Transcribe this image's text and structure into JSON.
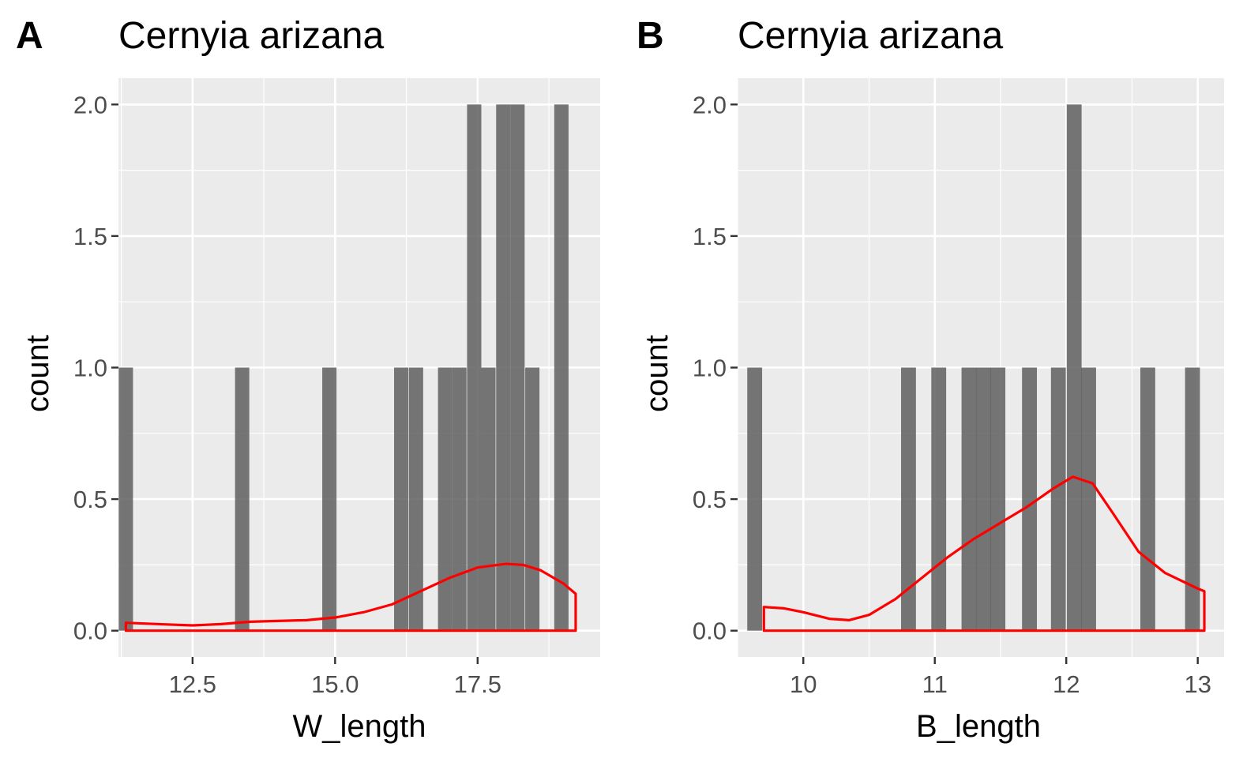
{
  "panels": [
    {
      "tag": "A",
      "title": "Cernyia arizana",
      "xlabel": "W_length",
      "ylabel": "count"
    },
    {
      "tag": "B",
      "title": "Cernyia arizana",
      "xlabel": "B_length",
      "ylabel": "count"
    }
  ],
  "chart_data": [
    {
      "type": "bar",
      "subtype": "histogram with density overlay",
      "title": "Cernyia arizana",
      "xlabel": "W_length",
      "ylabel": "count",
      "xlim": [
        11.2,
        19.65
      ],
      "ylim": [
        -0.1,
        2.1
      ],
      "x_ticks": [
        "12.5",
        "15.0",
        "17.5"
      ],
      "y_ticks": [
        "0.0",
        "0.5",
        "1.0",
        "1.5",
        "2.0"
      ],
      "bin_width": 0.25,
      "bins": [
        {
          "x": 11.33,
          "count": 1
        },
        {
          "x": 13.37,
          "count": 1
        },
        {
          "x": 14.9,
          "count": 1
        },
        {
          "x": 16.16,
          "count": 1
        },
        {
          "x": 16.42,
          "count": 1
        },
        {
          "x": 16.93,
          "count": 1
        },
        {
          "x": 17.18,
          "count": 1
        },
        {
          "x": 17.44,
          "count": 2
        },
        {
          "x": 17.69,
          "count": 1
        },
        {
          "x": 17.95,
          "count": 2
        },
        {
          "x": 18.2,
          "count": 2
        },
        {
          "x": 18.46,
          "count": 1
        },
        {
          "x": 18.97,
          "count": 2
        }
      ],
      "density_line": {
        "color": "#ff0000",
        "points": [
          [
            11.33,
            0.03
          ],
          [
            12.0,
            0.024
          ],
          [
            12.5,
            0.02
          ],
          [
            13.0,
            0.025
          ],
          [
            13.5,
            0.034
          ],
          [
            14.0,
            0.037
          ],
          [
            14.5,
            0.04
          ],
          [
            15.0,
            0.05
          ],
          [
            15.5,
            0.07
          ],
          [
            16.0,
            0.1
          ],
          [
            16.5,
            0.15
          ],
          [
            17.0,
            0.2
          ],
          [
            17.5,
            0.24
          ],
          [
            18.0,
            0.254
          ],
          [
            18.3,
            0.25
          ],
          [
            18.6,
            0.23
          ],
          [
            19.0,
            0.18
          ],
          [
            19.22,
            0.14
          ]
        ]
      },
      "grid": true,
      "background": "#ebebeb"
    },
    {
      "type": "bar",
      "subtype": "histogram with density overlay",
      "title": "Cernyia arizana",
      "xlabel": "B_length",
      "ylabel": "count",
      "xlim": [
        9.5,
        13.2
      ],
      "ylim": [
        -0.1,
        2.1
      ],
      "x_ticks": [
        "10",
        "11",
        "12",
        "13"
      ],
      "y_ticks": [
        "0.0",
        "0.5",
        "1.0",
        "1.5",
        "2.0"
      ],
      "bin_width": 0.113,
      "bins": [
        {
          "x": 9.63,
          "count": 1
        },
        {
          "x": 10.8,
          "count": 1
        },
        {
          "x": 11.03,
          "count": 1
        },
        {
          "x": 11.26,
          "count": 1
        },
        {
          "x": 11.37,
          "count": 1
        },
        {
          "x": 11.48,
          "count": 1
        },
        {
          "x": 11.72,
          "count": 1
        },
        {
          "x": 11.94,
          "count": 1
        },
        {
          "x": 12.06,
          "count": 2
        },
        {
          "x": 12.17,
          "count": 1
        },
        {
          "x": 12.62,
          "count": 1
        },
        {
          "x": 12.96,
          "count": 1
        }
      ],
      "density_line": {
        "color": "#ff0000",
        "points": [
          [
            9.7,
            0.09
          ],
          [
            9.85,
            0.085
          ],
          [
            10.0,
            0.07
          ],
          [
            10.2,
            0.045
          ],
          [
            10.35,
            0.04
          ],
          [
            10.5,
            0.06
          ],
          [
            10.7,
            0.12
          ],
          [
            10.9,
            0.2
          ],
          [
            11.1,
            0.28
          ],
          [
            11.3,
            0.35
          ],
          [
            11.5,
            0.41
          ],
          [
            11.7,
            0.47
          ],
          [
            11.9,
            0.54
          ],
          [
            12.05,
            0.585
          ],
          [
            12.2,
            0.56
          ],
          [
            12.35,
            0.45
          ],
          [
            12.55,
            0.3
          ],
          [
            12.75,
            0.22
          ],
          [
            13.0,
            0.16
          ],
          [
            13.05,
            0.15
          ]
        ]
      },
      "grid": true,
      "background": "#ebebeb"
    }
  ]
}
